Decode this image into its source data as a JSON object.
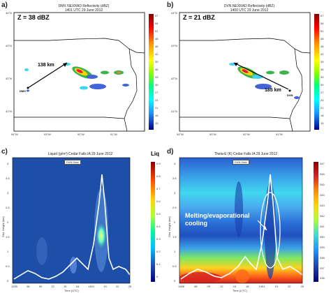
{
  "panel_a": {
    "letter": "a)",
    "title_line1": "DMX NEXRAD Reflectivity (dBZ)",
    "title_line2": "1401 UTC 29 June 2012",
    "z_label": "Z = 38 dBZ",
    "distance": "138 km",
    "site": "DMX",
    "lat_ticks": [
      "44°N",
      "43°N",
      "42°N",
      "41°N"
    ],
    "lon_ticks": [
      "94°W",
      "93°W",
      "92°W",
      "91°W"
    ],
    "cb_ticks": [
      "57",
      "54",
      "51",
      "48",
      "45",
      "42",
      "39",
      "36",
      "33",
      "30",
      "27",
      "24",
      "21",
      "18",
      "15"
    ]
  },
  "panel_b": {
    "letter": "b)",
    "title_line1": "DVN NEXRAD Reflectivity (dBZ)",
    "title_line2": "1400 UTC 29 June 2012",
    "z_label": "Z = 21 dBZ",
    "distance": "185 km",
    "site": "DVN",
    "lat_ticks": [
      "44°N",
      "43°N",
      "42°N",
      "41°N"
    ],
    "lon_ticks": [
      "94°W",
      "93°W",
      "92°W",
      "91°W"
    ],
    "cb_ticks": [
      "57",
      "54",
      "51",
      "48",
      "45",
      "42",
      "39",
      "36",
      "33",
      "30",
      "27",
      "24",
      "21",
      "18",
      "15"
    ]
  },
  "panel_c": {
    "letter": "c)",
    "title": "Liquid (g/m³) Cedar Falls IA 29 June 2012",
    "legend": "DVN Dkbl",
    "right_label": "Liq",
    "x_ticks": [
      "1305",
      "06",
      "09",
      "12",
      "15",
      "18",
      "1401",
      "19",
      "22",
      "25"
    ],
    "y_ticks": [
      "4",
      "3.5",
      "3",
      "2.5",
      "2",
      "1.5",
      "1",
      "0.5",
      "0"
    ],
    "cb_ticks": [
      "0.9",
      "0.8",
      "0.7",
      "0.6",
      "0.5",
      "0.4",
      "0.3",
      "0.2",
      "0.1",
      "0"
    ],
    "x_label": "Time (UTC)",
    "y_label": "Dist. Height (km)"
  },
  "panel_d": {
    "letter": "d)",
    "title": "Theta-E (K) Cedar Falls IA 29 June 2012",
    "legend": "DVN Dkbl",
    "annotation_line1": "Melting/evaporational",
    "annotation_line2": "cooling",
    "x_ticks": [
      "1305",
      "08",
      "09",
      "12",
      "15",
      "18",
      "1401",
      "19",
      "22",
      "25"
    ],
    "y_ticks": [
      "4",
      "3.5",
      "3",
      "2.5",
      "2",
      "1.5",
      "1",
      "0.5",
      "0"
    ],
    "cb_ticks": [
      "347",
      "346",
      "345",
      "344",
      "343",
      "342",
      "341",
      "340",
      "339",
      "338",
      "337",
      "336"
    ],
    "x_label": "Time (UTC)",
    "y_label": "Dist. Height (km)"
  },
  "colors": {
    "cb_top": "#8b0000",
    "cb_mid": "#ffff00",
    "cb_low": "#00bfff",
    "cb_bottom": "#00008b",
    "c_bg": "#1e4fa8",
    "white_line": "#ffffff"
  }
}
